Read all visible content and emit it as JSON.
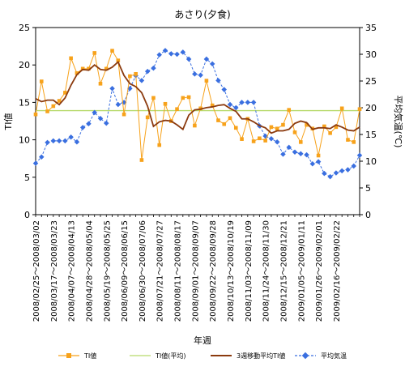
{
  "chart_data": {
    "type": "line",
    "title": "あさり(夕食)",
    "xlabel": "年週",
    "ylabel_left": "TI値",
    "ylabel_right": "平均気温(℃)",
    "ylim_left": [
      0,
      25
    ],
    "ylim_right": [
      0,
      35
    ],
    "yticks_left": [
      "0",
      "5",
      "10",
      "15",
      "20",
      "25"
    ],
    "yticks_right": [
      "0",
      "5",
      "10",
      "15",
      "20",
      "25",
      "30",
      "35"
    ],
    "tick_labels": [
      "2008/02/25～2008/03/02",
      "2008/03/17～2008/03/23",
      "2008/04/07～2008/04/13",
      "2008/04/28～2008/05/04",
      "2008/05/19～2008/05/25",
      "2008/06/09～2008/06/15",
      "2008/06/30～2008/07/06",
      "2008/07/21～2008/07/27",
      "2008/08/11～2008/08/17",
      "2008/09/01～2008/09/07",
      "2008/09/22～2008/09/28",
      "2008/10/13～2008/10/19",
      "2008/11/03～2008/11/09",
      "2008/11/24～2008/11/30",
      "2008/12/15～2008/12/21",
      "2009/01/05～2009/01/11",
      "2009/01/26～2009/02/01",
      "2009/02/16～2009/02/22"
    ],
    "grid": false,
    "legend_position": "bottom",
    "series": [
      {
        "name": "TI値",
        "axis": "left",
        "color": "#f7a21b",
        "marker": "square",
        "values": [
          13.4,
          17.8,
          13.8,
          14.5,
          15.2,
          16.3,
          20.9,
          18.9,
          19.5,
          19.5,
          21.6,
          17.5,
          19.5,
          21.9,
          20.6,
          13.4,
          18.5,
          18.8,
          7.3,
          13.0,
          15.6,
          9.3,
          14.8,
          12.5,
          14.1,
          15.6,
          15.7,
          11.9,
          14.2,
          17.9,
          14.6,
          12.6,
          12.1,
          12.9,
          11.6,
          10.1,
          12.8,
          9.8,
          10.2,
          9.9,
          11.7,
          11.5,
          12.0,
          14.0,
          11.0,
          9.7,
          12.0,
          11.5,
          7.9,
          11.8,
          10.9,
          11.7,
          14.2,
          10.0,
          9.7,
          14.1
        ]
      },
      {
        "name": "TI値(平均)",
        "axis": "left",
        "color": "#b6d96a",
        "marker": "none",
        "values": [
          13.9,
          13.9,
          13.9,
          13.9,
          13.9,
          13.9,
          13.9,
          13.9,
          13.9,
          13.9,
          13.9,
          13.9,
          13.9,
          13.9,
          13.9,
          13.9,
          13.9,
          13.9,
          13.9,
          13.9,
          13.9,
          13.9,
          13.9,
          13.9,
          13.9,
          13.9,
          13.9,
          13.9,
          13.9,
          13.9,
          13.9,
          13.9,
          13.9,
          13.9,
          13.9,
          13.9,
          13.9,
          13.9,
          13.9,
          13.9,
          13.9,
          13.9,
          13.9,
          13.9,
          13.9,
          13.9,
          13.9,
          13.9,
          13.9,
          13.9,
          13.9,
          13.9,
          13.9,
          13.9,
          13.9,
          13.9
        ]
      },
      {
        "name": "3週移動平均TI値",
        "axis": "left",
        "color": "#8b3a0e",
        "marker": "none",
        "values": [
          15.5,
          15.1,
          15.3,
          15.3,
          14.7,
          15.6,
          17.3,
          18.7,
          19.4,
          19.3,
          20.0,
          19.4,
          19.3,
          19.7,
          20.4,
          18.6,
          17.5,
          17.1,
          16.3,
          14.5,
          11.8,
          12.4,
          12.6,
          12.5,
          12.0,
          11.4,
          13.3,
          14.0,
          14.1,
          14.3,
          14.4,
          14.6,
          14.7,
          14.2,
          13.8,
          12.8,
          12.8,
          12.4,
          11.9,
          11.6,
          10.9,
          11.2,
          11.2,
          11.4,
          12.2,
          12.5,
          12.3,
          11.4,
          11.6,
          11.6,
          11.5,
          12.0,
          11.7,
          11.3,
          11.2,
          11.7
        ]
      },
      {
        "name": "平均気温",
        "axis": "right",
        "color": "#3a6fe0",
        "marker": "diamond",
        "values": [
          9.6,
          10.8,
          13.5,
          13.8,
          13.8,
          13.8,
          14.5,
          13.6,
          16.3,
          17.0,
          19.1,
          18.0,
          17.1,
          23.6,
          20.6,
          21.0,
          23.6,
          26.0,
          25.1,
          26.8,
          27.4,
          29.9,
          30.7,
          30.1,
          30.0,
          30.4,
          29.1,
          26.3,
          26.1,
          29.1,
          28.2,
          25.1,
          23.4,
          20.6,
          20.0,
          21.0,
          21.0,
          21.0,
          16.6,
          14.7,
          14.2,
          13.6,
          11.3,
          12.6,
          11.7,
          11.4,
          11.2,
          9.5,
          9.9,
          7.7,
          7.1,
          7.8,
          8.2,
          8.4,
          9.1,
          11.1
        ]
      }
    ]
  }
}
